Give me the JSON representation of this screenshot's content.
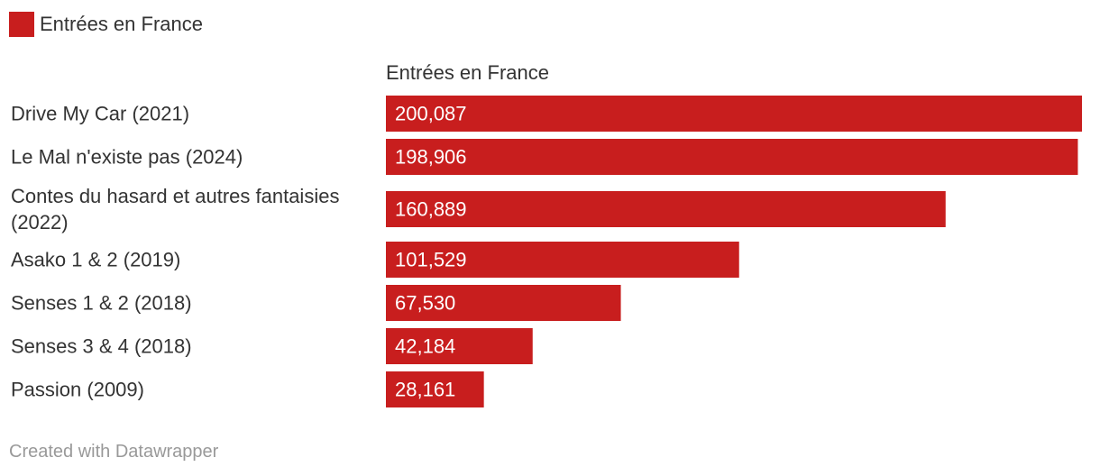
{
  "legend": {
    "label": "Entrées en France",
    "color": "#c81e1e"
  },
  "chart_data": {
    "type": "bar",
    "orientation": "horizontal",
    "column_header": "Entrées en France",
    "categories": [
      "Drive My Car (2021)",
      "Le Mal n'existe pas (2024)",
      "Contes du hasard et autres fantaisies (2022)",
      "Asako 1 & 2 (2019)",
      "Senses 1 & 2 (2018)",
      "Senses 3 & 4 (2018)",
      "Passion (2009)"
    ],
    "values": [
      200087,
      198906,
      160889,
      101529,
      67530,
      42184,
      28161
    ],
    "value_labels": [
      "200,087",
      "198,906",
      "160,889",
      "101,529",
      "67,530",
      "42,184",
      "28,161"
    ],
    "xlim": [
      0,
      200087
    ],
    "bar_color": "#c81e1e",
    "label_color": "#ffffff"
  },
  "footer": {
    "credit": "Created with Datawrapper"
  }
}
